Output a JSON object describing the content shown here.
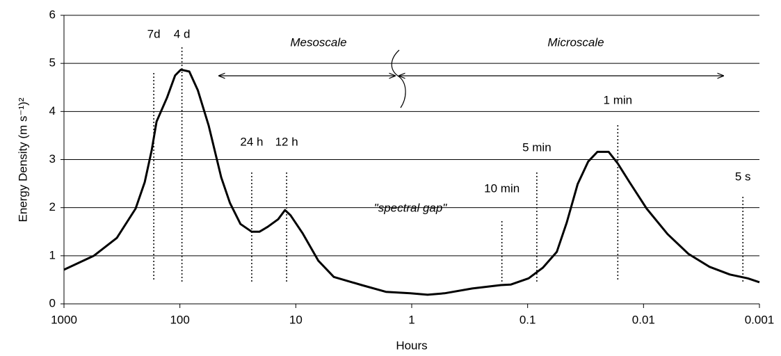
{
  "chart_data": {
    "type": "line",
    "x_label": "Hours",
    "y_label": "Energy Density  (m s⁻¹)²",
    "xscale": "log",
    "xlim": [
      1000,
      0.001
    ],
    "xticks": [
      1000,
      100,
      10,
      1,
      0.1,
      0.01,
      0.001
    ],
    "ylim": [
      0,
      6
    ],
    "yticks": [
      0,
      1,
      2,
      3,
      4,
      5,
      6
    ],
    "grid": true,
    "color": "#000000",
    "x": [
      1000,
      552,
      350,
      241,
      201,
      175,
      159,
      129,
      110,
      98,
      83,
      70,
      56.5,
      44,
      37,
      30,
      24,
      20.6,
      17.5,
      14.2,
      12.4,
      11.1,
      8.75,
      6.4,
      4.7,
      2.7,
      1.67,
      1.03,
      0.73,
      0.52,
      0.3,
      0.17,
      0.14,
      0.098,
      0.074,
      0.056,
      0.046,
      0.037,
      0.03,
      0.025,
      0.02,
      0.0167,
      0.0132,
      0.0094,
      0.0062,
      0.0041,
      0.0027,
      0.0018,
      0.00126,
      0.001
    ],
    "values": [
      0.71,
      1.0,
      1.37,
      1.98,
      2.53,
      3.2,
      3.79,
      4.29,
      4.75,
      4.87,
      4.83,
      4.44,
      3.71,
      2.63,
      2.1,
      1.66,
      1.5,
      1.5,
      1.6,
      1.76,
      1.95,
      1.84,
      1.47,
      0.9,
      0.56,
      0.39,
      0.25,
      0.22,
      0.19,
      0.22,
      0.32,
      0.39,
      0.4,
      0.53,
      0.75,
      1.08,
      1.69,
      2.49,
      2.96,
      3.16,
      3.16,
      2.92,
      2.53,
      1.98,
      1.45,
      1.04,
      0.77,
      0.61,
      0.53,
      0.45
    ],
    "period_markers": [
      {
        "label": "7d",
        "x": 168
      },
      {
        "label": "4 d",
        "x": 96
      },
      {
        "label": "24 h",
        "x": 24
      },
      {
        "label": "12 h",
        "x": 12
      },
      {
        "label": "10 min",
        "x": 0.1667
      },
      {
        "label": "5 min",
        "x": 0.0833
      },
      {
        "label": "1 min",
        "x": 0.01667
      },
      {
        "label": "5 s",
        "x": 0.001389
      }
    ],
    "annotations": [
      "Mesoscale",
      "Microscale",
      "\"spectral gap\""
    ]
  }
}
